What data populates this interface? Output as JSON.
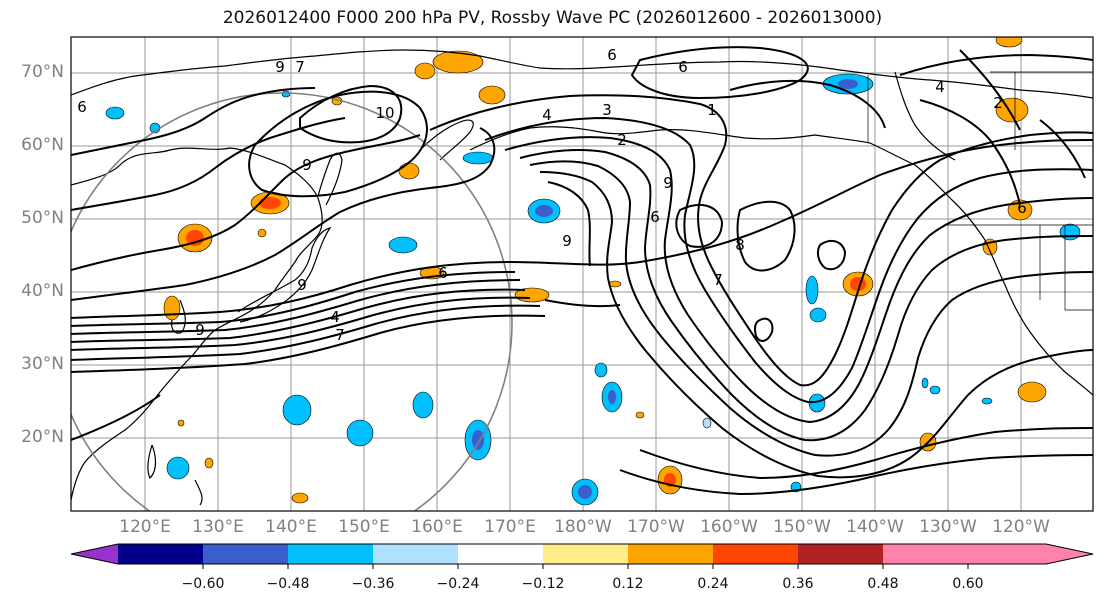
{
  "title": "2026012400 F000 200 hPa PV, Rossby Wave PC (2026012600 - 2026013000)",
  "lat_labels": [
    "70°N",
    "60°N",
    "50°N",
    "40°N",
    "30°N",
    "20°N"
  ],
  "lon_labels": [
    "120°E",
    "130°E",
    "140°E",
    "150°E",
    "160°E",
    "170°E",
    "180°W",
    "170°W",
    "160°W",
    "150°W",
    "140°W",
    "130°W",
    "120°W"
  ],
  "contour_labels": [
    "9",
    "7",
    "6",
    "10",
    "6",
    "6",
    "4",
    "3",
    "2",
    "9",
    "6",
    "4",
    "7",
    "9",
    "8",
    "9",
    "6",
    "2",
    "6",
    "4",
    "1",
    "7",
    "9",
    "9"
  ],
  "colorbar": {
    "ticks": [
      "−0.60",
      "−0.48",
      "−0.36",
      "−0.24",
      "−0.12",
      "0.12",
      "0.24",
      "0.36",
      "0.48",
      "0.60"
    ],
    "colors": [
      "#9932CC",
      "#00008B",
      "#3A5FCD",
      "#00BFFF",
      "#B0E2FF",
      "#FFFFFF",
      "#FFEC8B",
      "#FFA500",
      "#FF4500",
      "#B22222",
      "#FF82AB"
    ]
  },
  "colors": {
    "neg_strong": "#3A5FCD",
    "neg_mid": "#00BFFF",
    "neg_weak": "#B0E2FF",
    "pos_weak": "#FFEC8B",
    "pos_mid": "#FFA500",
    "pos_strong": "#FF4500",
    "grid": "#999999",
    "contour": "#000000"
  }
}
